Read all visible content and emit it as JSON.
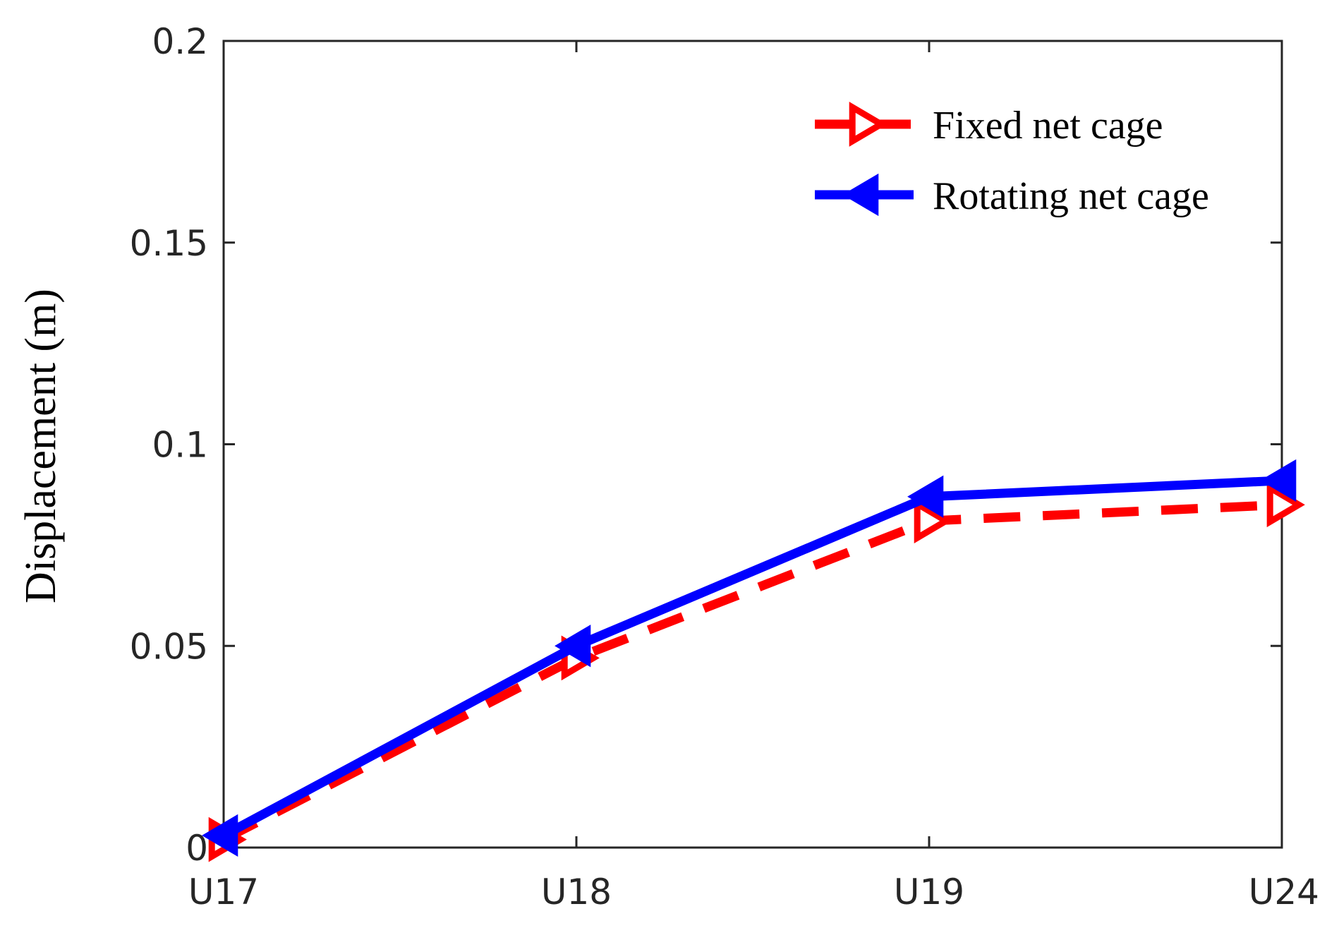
{
  "chart_data": {
    "type": "line",
    "categories": [
      "U17",
      "U18",
      "U19",
      "U24"
    ],
    "ylabel": "Displacement (m)",
    "xlabel": "",
    "title": "",
    "ylim": [
      0,
      0.2
    ],
    "yticks": [
      "0",
      "0.05",
      "0.1",
      "0.15",
      "0.2"
    ],
    "grid": false,
    "legend_position": "top-right",
    "series": [
      {
        "name": "Fixed net cage",
        "values": [
          0.002,
          0.047,
          0.081,
          0.085
        ],
        "color": "#ff0000",
        "line_style": "dashed",
        "marker": "right-triangle"
      },
      {
        "name": "Rotating net cage",
        "values": [
          0.003,
          0.05,
          0.087,
          0.091
        ],
        "color": "#0000ff",
        "line_style": "solid",
        "marker": "left-triangle"
      }
    ]
  }
}
